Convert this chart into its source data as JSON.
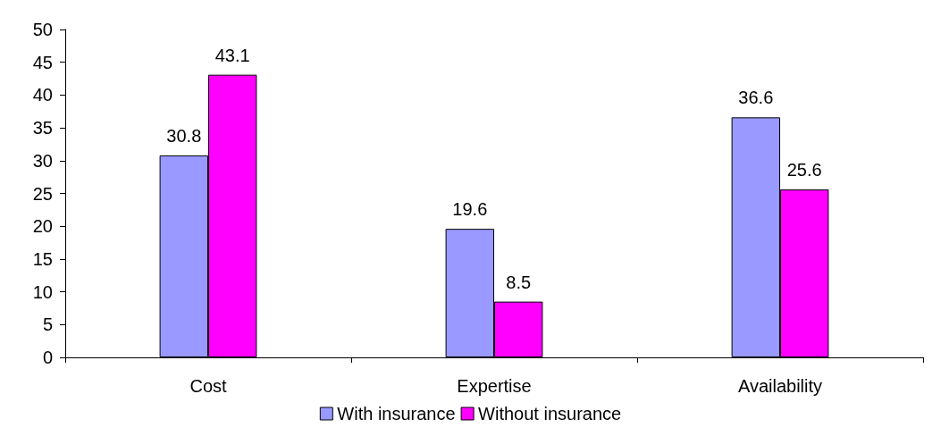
{
  "chart_data": {
    "type": "bar",
    "categories": [
      "Cost",
      "Expertise",
      "Availability"
    ],
    "series": [
      {
        "name": "With insurance",
        "color": "#9999ff",
        "values": [
          30.8,
          19.6,
          36.6
        ]
      },
      {
        "name": "Without insurance",
        "color": "#ff00ff",
        "values": [
          43.1,
          8.5,
          25.6
        ]
      }
    ],
    "ylim": [
      0,
      50
    ],
    "yticks": [
      0,
      5,
      10,
      15,
      20,
      25,
      30,
      35,
      40,
      45,
      50
    ],
    "grid": false,
    "legend": "bottom",
    "data_labels": true
  }
}
